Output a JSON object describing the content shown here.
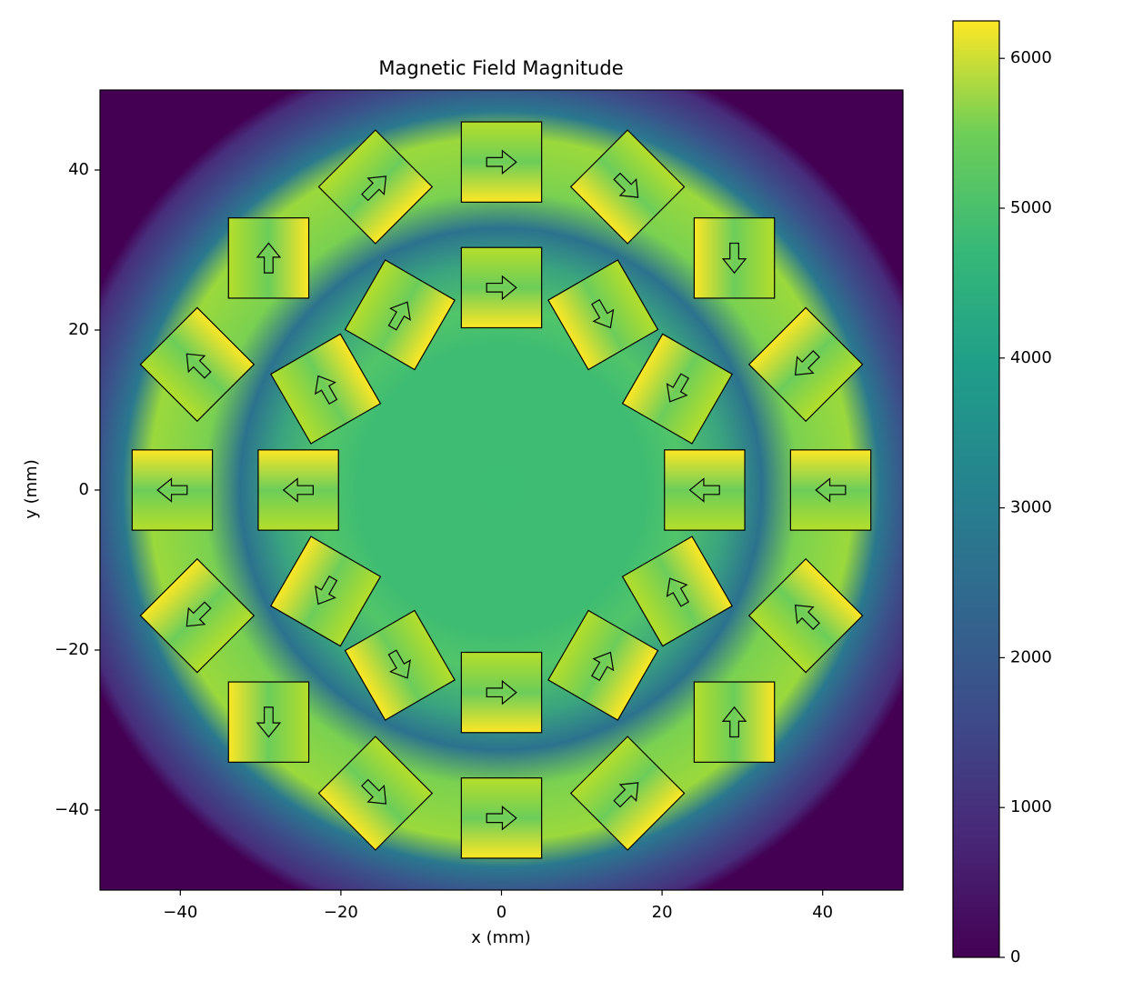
{
  "chart_data": {
    "type": "heatmap",
    "title": "Magnetic Field Magnitude",
    "xlabel": "x (mm)",
    "ylabel": "y (mm)",
    "xlim": [
      -50,
      50
    ],
    "ylim": [
      -50,
      50
    ],
    "xticks": [
      {
        "value": -40,
        "label": "−40"
      },
      {
        "value": -20,
        "label": "−20"
      },
      0,
      20,
      40
    ],
    "yticks": [
      {
        "value": -40,
        "label": "−40"
      },
      {
        "value": -20,
        "label": "−20"
      },
      0,
      20,
      40
    ],
    "clim": [
      0,
      6250
    ],
    "cticks": [
      0,
      1000,
      2000,
      3000,
      4000,
      5000,
      6000
    ],
    "magnet_size": 10,
    "magnets": [
      {
        "x": 41,
        "y": 0,
        "angle": 180
      },
      {
        "x": 37.9,
        "y": 15.7,
        "angle": 225
      },
      {
        "x": 29,
        "y": 29,
        "angle": 270
      },
      {
        "x": 15.7,
        "y": 37.9,
        "angle": 315
      },
      {
        "x": 0,
        "y": 41,
        "angle": 0
      },
      {
        "x": -15.7,
        "y": 37.9,
        "angle": 45
      },
      {
        "x": -29,
        "y": 29,
        "angle": 90
      },
      {
        "x": -37.9,
        "y": 15.7,
        "angle": 135
      },
      {
        "x": -41,
        "y": 0,
        "angle": 180
      },
      {
        "x": -37.9,
        "y": -15.7,
        "angle": 225
      },
      {
        "x": -29,
        "y": -29,
        "angle": 270
      },
      {
        "x": -15.7,
        "y": -37.9,
        "angle": 315
      },
      {
        "x": 0,
        "y": -41,
        "angle": 0
      },
      {
        "x": 15.7,
        "y": -37.9,
        "angle": 45
      },
      {
        "x": 29,
        "y": -29,
        "angle": 90
      },
      {
        "x": 37.9,
        "y": -15.7,
        "angle": 135
      },
      {
        "x": 25.3,
        "y": 0,
        "angle": 180
      },
      {
        "x": 21.9,
        "y": 12.65,
        "angle": 240
      },
      {
        "x": 12.65,
        "y": 21.9,
        "angle": 300
      },
      {
        "x": 0,
        "y": 25.3,
        "angle": 0
      },
      {
        "x": -12.65,
        "y": 21.9,
        "angle": 60
      },
      {
        "x": -21.9,
        "y": 12.65,
        "angle": 120
      },
      {
        "x": -25.3,
        "y": 0,
        "angle": 180
      },
      {
        "x": -21.9,
        "y": -12.65,
        "angle": 240
      },
      {
        "x": -12.65,
        "y": -21.9,
        "angle": 300
      },
      {
        "x": 0,
        "y": -25.3,
        "angle": 0
      },
      {
        "x": 12.65,
        "y": -21.9,
        "angle": 60
      },
      {
        "x": 21.9,
        "y": -12.65,
        "angle": 120
      }
    ]
  }
}
